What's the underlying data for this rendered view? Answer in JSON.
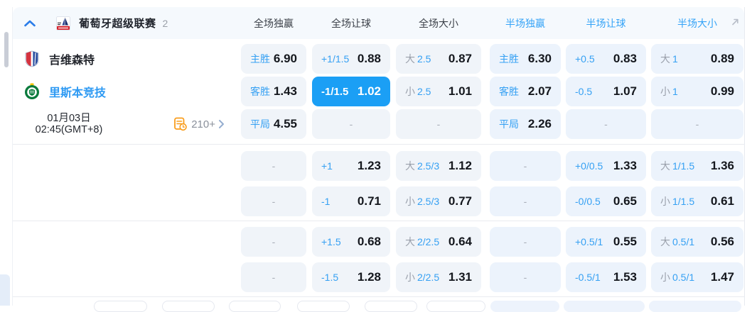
{
  "league_header": {
    "league_name": "葡萄牙超级联赛",
    "match_count": "2",
    "columns": [
      "全场独赢",
      "全场让球",
      "全场大小",
      "半场独赢",
      "半场让球",
      "半场大小"
    ]
  },
  "match": {
    "home_team": "吉维森特",
    "away_team": "里斯本竞技",
    "date": "01月03日",
    "time": "02:45(GMT+8)",
    "more_markets_count": "210+"
  },
  "misc": {
    "dash": "-"
  },
  "icons": {
    "collapse": "chevron-up-icon",
    "league_logo": "liga-portugal-logo",
    "home_badge": "gil-vicente-badge",
    "away_badge": "sporting-badge",
    "markets": "markets-clock-icon",
    "markets_chevron": "chevron-right-icon",
    "expand": "expand-arrow-icon"
  },
  "colors": {
    "accent_blue": "#1b9ff5",
    "label_blue": "#35a0f3",
    "selected_cell_bg": "#1b9ff5",
    "cell_bg_full": "#f0f4f9",
    "cell_bg_half": "#ecf3fc",
    "header_band_bg": "#f5f9fd",
    "odds_text": "#14171d",
    "muted_gray": "#9aa0ab",
    "orange_icon": "#f99d1c"
  },
  "odds_groups": [
    {
      "rows": [
        {
          "cells": [
            {
              "label": "主胜",
              "value": "6.90"
            },
            {
              "label": "+1/1.5",
              "value": "0.88"
            },
            {
              "prefix": "大",
              "label": "2.5",
              "value": "0.87"
            },
            {
              "label": "主胜",
              "value": "6.30"
            },
            {
              "label": "+0.5",
              "value": "0.83"
            },
            {
              "prefix": "大",
              "label": "1",
              "value": "0.89"
            }
          ]
        },
        {
          "cells": [
            {
              "label": "客胜",
              "value": "1.43"
            },
            {
              "label": "-1/1.5",
              "value": "1.02",
              "selected": true
            },
            {
              "prefix": "小",
              "label": "2.5",
              "value": "1.01"
            },
            {
              "label": "客胜",
              "value": "2.07"
            },
            {
              "label": "-0.5",
              "value": "1.07"
            },
            {
              "prefix": "小",
              "label": "1",
              "value": "0.99"
            }
          ]
        },
        {
          "cells": [
            {
              "label": "平局",
              "value": "4.55"
            },
            {
              "empty": true
            },
            {
              "empty": true
            },
            {
              "label": "平局",
              "value": "2.26"
            },
            {
              "empty": true
            },
            {
              "empty": true
            }
          ]
        }
      ]
    },
    {
      "rows": [
        {
          "cells": [
            {
              "empty": true
            },
            {
              "label": "+1",
              "value": "1.23"
            },
            {
              "prefix": "大",
              "label": "2.5/3",
              "value": "1.12"
            },
            {
              "empty": true
            },
            {
              "label": "+0/0.5",
              "value": "1.33"
            },
            {
              "prefix": "大",
              "label": "1/1.5",
              "value": "1.36"
            }
          ]
        },
        {
          "cells": [
            {
              "empty": true
            },
            {
              "label": "-1",
              "value": "0.71"
            },
            {
              "prefix": "小",
              "label": "2.5/3",
              "value": "0.77"
            },
            {
              "empty": true
            },
            {
              "label": "-0/0.5",
              "value": "0.65"
            },
            {
              "prefix": "小",
              "label": "1/1.5",
              "value": "0.61"
            }
          ]
        }
      ]
    },
    {
      "rows": [
        {
          "cells": [
            {
              "empty": true
            },
            {
              "label": "+1.5",
              "value": "0.68"
            },
            {
              "prefix": "大",
              "label": "2/2.5",
              "value": "0.64"
            },
            {
              "empty": true
            },
            {
              "label": "+0.5/1",
              "value": "0.55"
            },
            {
              "prefix": "大",
              "label": "0.5/1",
              "value": "0.56"
            }
          ]
        },
        {
          "cells": [
            {
              "empty": true
            },
            {
              "label": "-1.5",
              "value": "1.28"
            },
            {
              "prefix": "小",
              "label": "2/2.5",
              "value": "1.31"
            },
            {
              "empty": true
            },
            {
              "label": "-0.5/1",
              "value": "1.53"
            },
            {
              "prefix": "小",
              "label": "0.5/1",
              "value": "1.47"
            }
          ]
        }
      ]
    }
  ]
}
